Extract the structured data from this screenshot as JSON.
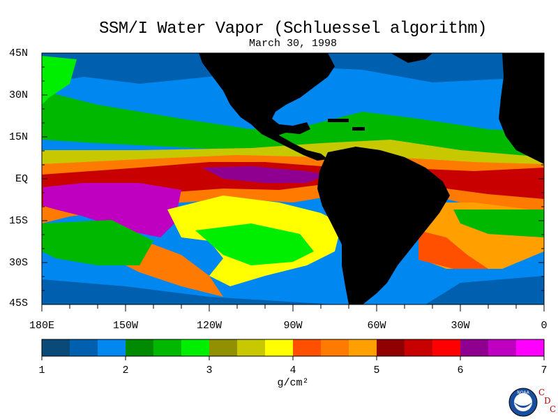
{
  "title": "SSM/I Water Vapor (Schluessel algorithm)",
  "date": "March 30, 1998",
  "lat_labels": [
    "45N",
    "30N",
    "15N",
    "EQ",
    "15S",
    "30S",
    "45S"
  ],
  "lon_labels": [
    "180E",
    "150W",
    "120W",
    "90W",
    "60W",
    "30W",
    "0"
  ],
  "colorbar": {
    "ticks": [
      "1",
      "2",
      "3",
      "4",
      "5",
      "6",
      "7"
    ],
    "unit": "g/cm²",
    "colors": [
      "#0a4a78",
      "#0060b0",
      "#0088f0",
      "#008a00",
      "#00b800",
      "#00ee00",
      "#909000",
      "#c8c800",
      "#ffff00",
      "#ff5000",
      "#ff7a00",
      "#ffa000",
      "#900000",
      "#c80000",
      "#ff0000",
      "#900090",
      "#c000c0",
      "#ff00ff"
    ]
  },
  "logo": {
    "text_c1": "C",
    "text_d": "D",
    "text_c2": "C",
    "noaa": "NOAA"
  },
  "colors": {
    "land": "#000000",
    "background": "#ffffff"
  }
}
